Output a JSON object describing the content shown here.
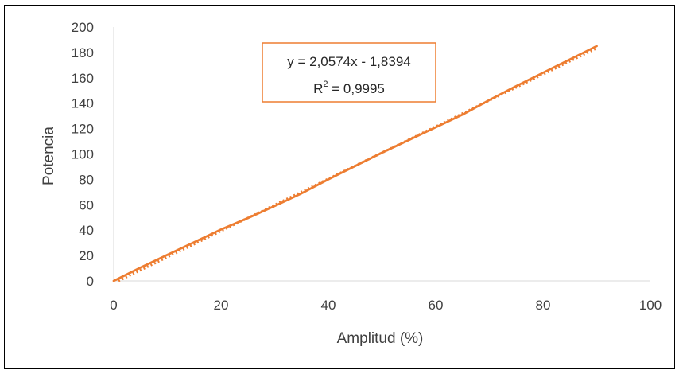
{
  "chart_data": {
    "type": "line",
    "xlabel": "Amplitud (%)",
    "ylabel": "Potencia",
    "xlim": [
      0,
      100
    ],
    "ylim": [
      0,
      200
    ],
    "x_ticks": [
      "0",
      "20",
      "40",
      "60",
      "80",
      "100"
    ],
    "y_ticks": [
      "0",
      "20",
      "40",
      "60",
      "80",
      "100",
      "120",
      "140",
      "160",
      "180",
      "200"
    ],
    "grid": false,
    "legend": "none",
    "series": [
      {
        "type": "line",
        "color": "#ED7D31",
        "x": [
          0,
          5,
          10,
          15,
          20,
          25,
          30,
          35,
          40,
          45,
          50,
          55,
          60,
          65,
          70,
          75,
          80,
          85,
          90
        ],
        "y": [
          0,
          10.5,
          20.5,
          30.5,
          40.5,
          49.5,
          59,
          69,
          80,
          90.5,
          101,
          111,
          121,
          131,
          142.5,
          153.5,
          164,
          174.5,
          185
        ]
      }
    ],
    "trendline": {
      "type": "linear",
      "style": "dotted",
      "color": "#ED7D31",
      "slope": 2.0574,
      "intercept": -1.8394,
      "x_range": [
        0,
        90
      ],
      "equation_label": "y = 2,0574x - 1,8394",
      "r2_prefix": "R",
      "r2_exponent": "2",
      "r2_suffix": " = 0,9995"
    }
  }
}
